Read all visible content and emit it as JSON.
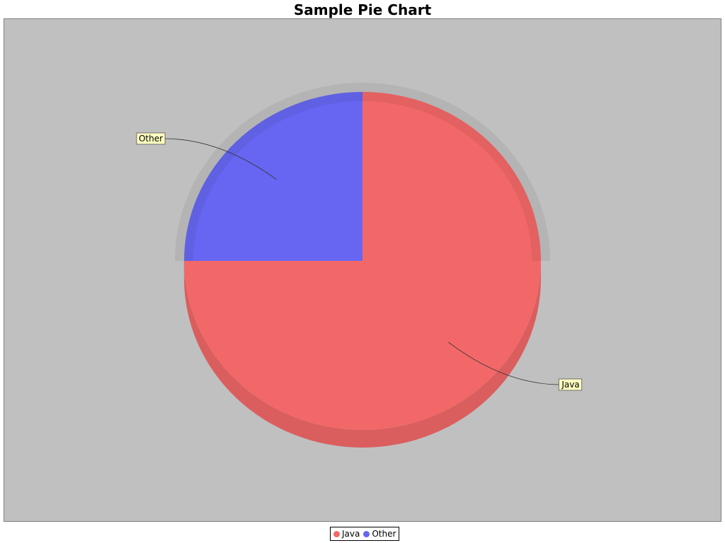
{
  "chart_data": {
    "type": "pie",
    "style": "3d",
    "title": "Sample Pie Chart",
    "slices": [
      {
        "label": "Java",
        "value": 75,
        "color": "#f26868"
      },
      {
        "label": "Other",
        "value": 25,
        "color": "#6666f2"
      }
    ],
    "legend_position": "bottom",
    "background": "#c0c0c0"
  },
  "legend": {
    "items": [
      {
        "label": "Java",
        "color": "#f26868"
      },
      {
        "label": "Other",
        "color": "#6666f2"
      }
    ]
  }
}
